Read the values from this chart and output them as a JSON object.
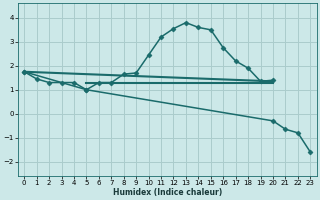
{
  "xlabel": "Humidex (Indice chaleur)",
  "bg_color": "#cce8e8",
  "grid_color": "#aacccc",
  "line_color": "#1a6b6b",
  "xlim": [
    -0.5,
    23.5
  ],
  "ylim": [
    -2.6,
    4.6
  ],
  "xticks": [
    0,
    1,
    2,
    3,
    4,
    5,
    6,
    7,
    8,
    9,
    10,
    11,
    12,
    13,
    14,
    15,
    16,
    17,
    18,
    19,
    20,
    21,
    22,
    23
  ],
  "yticks": [
    -2,
    -1,
    0,
    1,
    2,
    3,
    4
  ],
  "series": [
    {
      "x": [
        0,
        1,
        2,
        3,
        4,
        5,
        6,
        7,
        8,
        9,
        10,
        11,
        12,
        13,
        14,
        15,
        16,
        17,
        18,
        19,
        20
      ],
      "y": [
        1.75,
        1.45,
        1.3,
        1.3,
        1.3,
        1.0,
        1.3,
        1.3,
        1.65,
        1.7,
        2.45,
        3.2,
        3.55,
        3.8,
        3.6,
        3.5,
        2.75,
        2.2,
        1.9,
        1.35,
        1.4
      ],
      "marker": "D",
      "markersize": 2.5,
      "linewidth": 1.1
    },
    {
      "x": [
        0,
        20
      ],
      "y": [
        1.75,
        1.35
      ],
      "marker": null,
      "linewidth": 1.5
    },
    {
      "x": [
        5,
        20
      ],
      "y": [
        1.27,
        1.27
      ],
      "marker": null,
      "linewidth": 1.5
    },
    {
      "x": [
        0,
        5,
        20,
        21,
        22,
        23
      ],
      "y": [
        1.75,
        1.0,
        -0.3,
        -0.65,
        -0.8,
        -1.6
      ],
      "marker": "D",
      "markersize": 2.5,
      "linewidth": 1.1
    }
  ]
}
